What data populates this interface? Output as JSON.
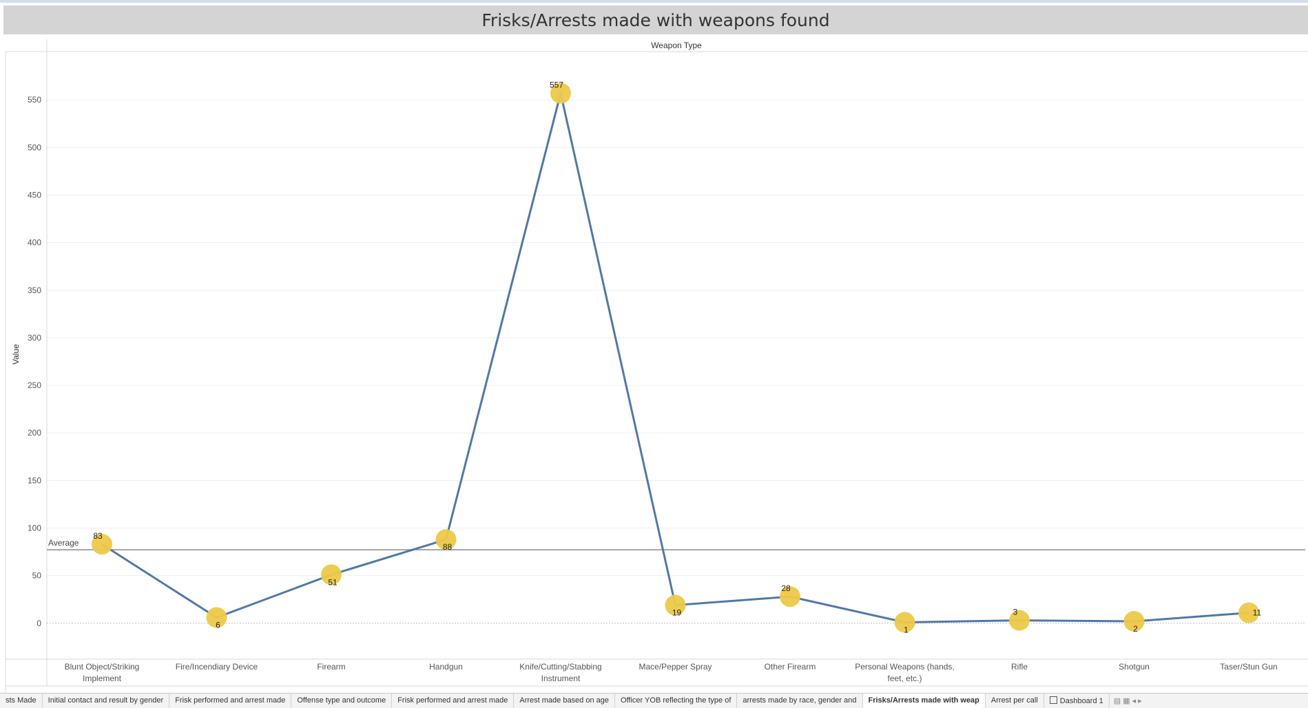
{
  "title": "Frisks/Arrests made with weapons found",
  "chart_data": {
    "type": "line",
    "title": "Frisks/Arrests made with weapons found",
    "column_header": "Weapon Type",
    "ylabel": "Value",
    "ylim": [
      -37,
      600
    ],
    "yticks": [
      0,
      50,
      100,
      150,
      200,
      250,
      300,
      350,
      400,
      450,
      500,
      550
    ],
    "categories": [
      "Blunt Object/Striking Implement",
      "Fire/Incendiary Device",
      "Firearm",
      "Handgun",
      "Knife/Cutting/Stabbing Instrument",
      "Mace/Pepper Spray",
      "Other Firearm",
      "Personal Weapons (hands, feet, etc.)",
      "Rifle",
      "Shotgun",
      "Taser/Stun Gun"
    ],
    "values": [
      83,
      6,
      51,
      88,
      557,
      19,
      28,
      1,
      3,
      2,
      11
    ],
    "reference_line": {
      "label": "Average",
      "value": 77.2
    },
    "line_color": "#4e79a7",
    "marker_color": "#edc948",
    "grid": true
  },
  "tabs": [
    {
      "label": "sts Made"
    },
    {
      "label": "Initial contact and result by gender"
    },
    {
      "label": "Frisk performed and arrest made"
    },
    {
      "label": "Offense type and outcome"
    },
    {
      "label": "Frisk performed and arrest made"
    },
    {
      "label": "Arrest made based on age"
    },
    {
      "label": "Officer YOB reflecting the type of"
    },
    {
      "label": "arrests made by race, gender and"
    },
    {
      "label": "Frisks/Arrests made with weap",
      "active": true
    },
    {
      "label": "Arrest per call"
    },
    {
      "label": "Dashboard 1",
      "icon": "dashboard-icon"
    }
  ]
}
